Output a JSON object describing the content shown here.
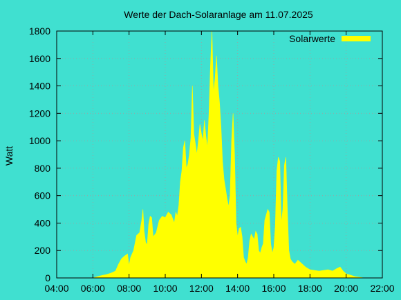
{
  "colors": {
    "background": "#40e0d0",
    "area": "#ffff00",
    "grid": "#a0a0a0",
    "axis": "#000000"
  },
  "chart_data": {
    "type": "area",
    "title": "Werte der Dach-Solaranlage am 11.07.2025",
    "xlabel": "",
    "ylabel": "Watt",
    "xlim": [
      "04:00",
      "22:00"
    ],
    "ylim": [
      0,
      1800
    ],
    "x_ticks": [
      "04:00",
      "06:00",
      "08:00",
      "10:00",
      "12:00",
      "14:00",
      "16:00",
      "18:00",
      "20:00",
      "22:00"
    ],
    "y_ticks": [
      0,
      200,
      400,
      600,
      800,
      1000,
      1200,
      1400,
      1600,
      1800
    ],
    "grid": true,
    "legend_position": "top-right",
    "series": [
      {
        "name": "Solarwerte",
        "color": "#ffff00",
        "points": [
          [
            "06:00",
            0
          ],
          [
            "06:15",
            10
          ],
          [
            "06:30",
            18
          ],
          [
            "06:45",
            25
          ],
          [
            "07:00",
            35
          ],
          [
            "07:15",
            50
          ],
          [
            "07:25",
            100
          ],
          [
            "07:35",
            140
          ],
          [
            "07:45",
            160
          ],
          [
            "07:55",
            175
          ],
          [
            "08:00",
            90
          ],
          [
            "08:05",
            150
          ],
          [
            "08:15",
            200
          ],
          [
            "08:25",
            310
          ],
          [
            "08:35",
            330
          ],
          [
            "08:42",
            420
          ],
          [
            "08:46",
            500
          ],
          [
            "08:50",
            340
          ],
          [
            "08:55",
            260
          ],
          [
            "09:00",
            240
          ],
          [
            "09:05",
            390
          ],
          [
            "09:10",
            450
          ],
          [
            "09:15",
            440
          ],
          [
            "09:20",
            300
          ],
          [
            "09:30",
            330
          ],
          [
            "09:40",
            420
          ],
          [
            "09:50",
            450
          ],
          [
            "10:00",
            440
          ],
          [
            "10:10",
            480
          ],
          [
            "10:20",
            460
          ],
          [
            "10:30",
            400
          ],
          [
            "10:35",
            480
          ],
          [
            "10:40",
            450
          ],
          [
            "10:45",
            530
          ],
          [
            "10:50",
            700
          ],
          [
            "10:55",
            780
          ],
          [
            "11:00",
            950
          ],
          [
            "11:05",
            1000
          ],
          [
            "11:10",
            800
          ],
          [
            "11:15",
            830
          ],
          [
            "11:20",
            900
          ],
          [
            "11:25",
            1020
          ],
          [
            "11:30",
            1400
          ],
          [
            "11:35",
            1050
          ],
          [
            "11:40",
            980
          ],
          [
            "11:45",
            900
          ],
          [
            "11:50",
            1000
          ],
          [
            "11:55",
            1120
          ],
          [
            "12:00",
            1050
          ],
          [
            "12:05",
            1000
          ],
          [
            "12:10",
            1150
          ],
          [
            "12:15",
            1030
          ],
          [
            "12:20",
            950
          ],
          [
            "12:25",
            1200
          ],
          [
            "12:30",
            1550
          ],
          [
            "12:35",
            1800
          ],
          [
            "12:40",
            1350
          ],
          [
            "12:45",
            1450
          ],
          [
            "12:50",
            1620
          ],
          [
            "12:55",
            1400
          ],
          [
            "13:00",
            1280
          ],
          [
            "13:05",
            1100
          ],
          [
            "13:10",
            850
          ],
          [
            "13:15",
            720
          ],
          [
            "13:20",
            650
          ],
          [
            "13:25",
            580
          ],
          [
            "13:30",
            520
          ],
          [
            "13:35",
            600
          ],
          [
            "13:40",
            1000
          ],
          [
            "13:45",
            1200
          ],
          [
            "13:50",
            900
          ],
          [
            "13:55",
            400
          ],
          [
            "14:00",
            300
          ],
          [
            "14:05",
            360
          ],
          [
            "14:10",
            370
          ],
          [
            "14:15",
            300
          ],
          [
            "14:20",
            150
          ],
          [
            "14:25",
            120
          ],
          [
            "14:30",
            100
          ],
          [
            "14:35",
            150
          ],
          [
            "14:40",
            270
          ],
          [
            "14:45",
            320
          ],
          [
            "14:50",
            300
          ],
          [
            "14:55",
            280
          ],
          [
            "15:00",
            340
          ],
          [
            "15:05",
            320
          ],
          [
            "15:10",
            200
          ],
          [
            "15:15",
            180
          ],
          [
            "15:20",
            220
          ],
          [
            "15:25",
            250
          ],
          [
            "15:30",
            420
          ],
          [
            "15:35",
            460
          ],
          [
            "15:40",
            500
          ],
          [
            "15:45",
            480
          ],
          [
            "15:50",
            250
          ],
          [
            "15:55",
            180
          ],
          [
            "16:00",
            220
          ],
          [
            "16:05",
            380
          ],
          [
            "16:10",
            780
          ],
          [
            "16:15",
            880
          ],
          [
            "16:20",
            850
          ],
          [
            "16:25",
            400
          ],
          [
            "16:30",
            500
          ],
          [
            "16:35",
            820
          ],
          [
            "16:40",
            880
          ],
          [
            "16:45",
            500
          ],
          [
            "16:50",
            200
          ],
          [
            "16:55",
            140
          ],
          [
            "17:00",
            120
          ],
          [
            "17:10",
            100
          ],
          [
            "17:20",
            130
          ],
          [
            "17:30",
            110
          ],
          [
            "17:45",
            80
          ],
          [
            "18:00",
            60
          ],
          [
            "18:15",
            55
          ],
          [
            "18:30",
            50
          ],
          [
            "18:45",
            55
          ],
          [
            "19:00",
            60
          ],
          [
            "19:15",
            50
          ],
          [
            "19:30",
            70
          ],
          [
            "19:40",
            80
          ],
          [
            "19:50",
            50
          ],
          [
            "20:00",
            30
          ],
          [
            "20:15",
            20
          ],
          [
            "20:30",
            10
          ],
          [
            "20:45",
            5
          ],
          [
            "21:00",
            0
          ]
        ]
      }
    ]
  }
}
